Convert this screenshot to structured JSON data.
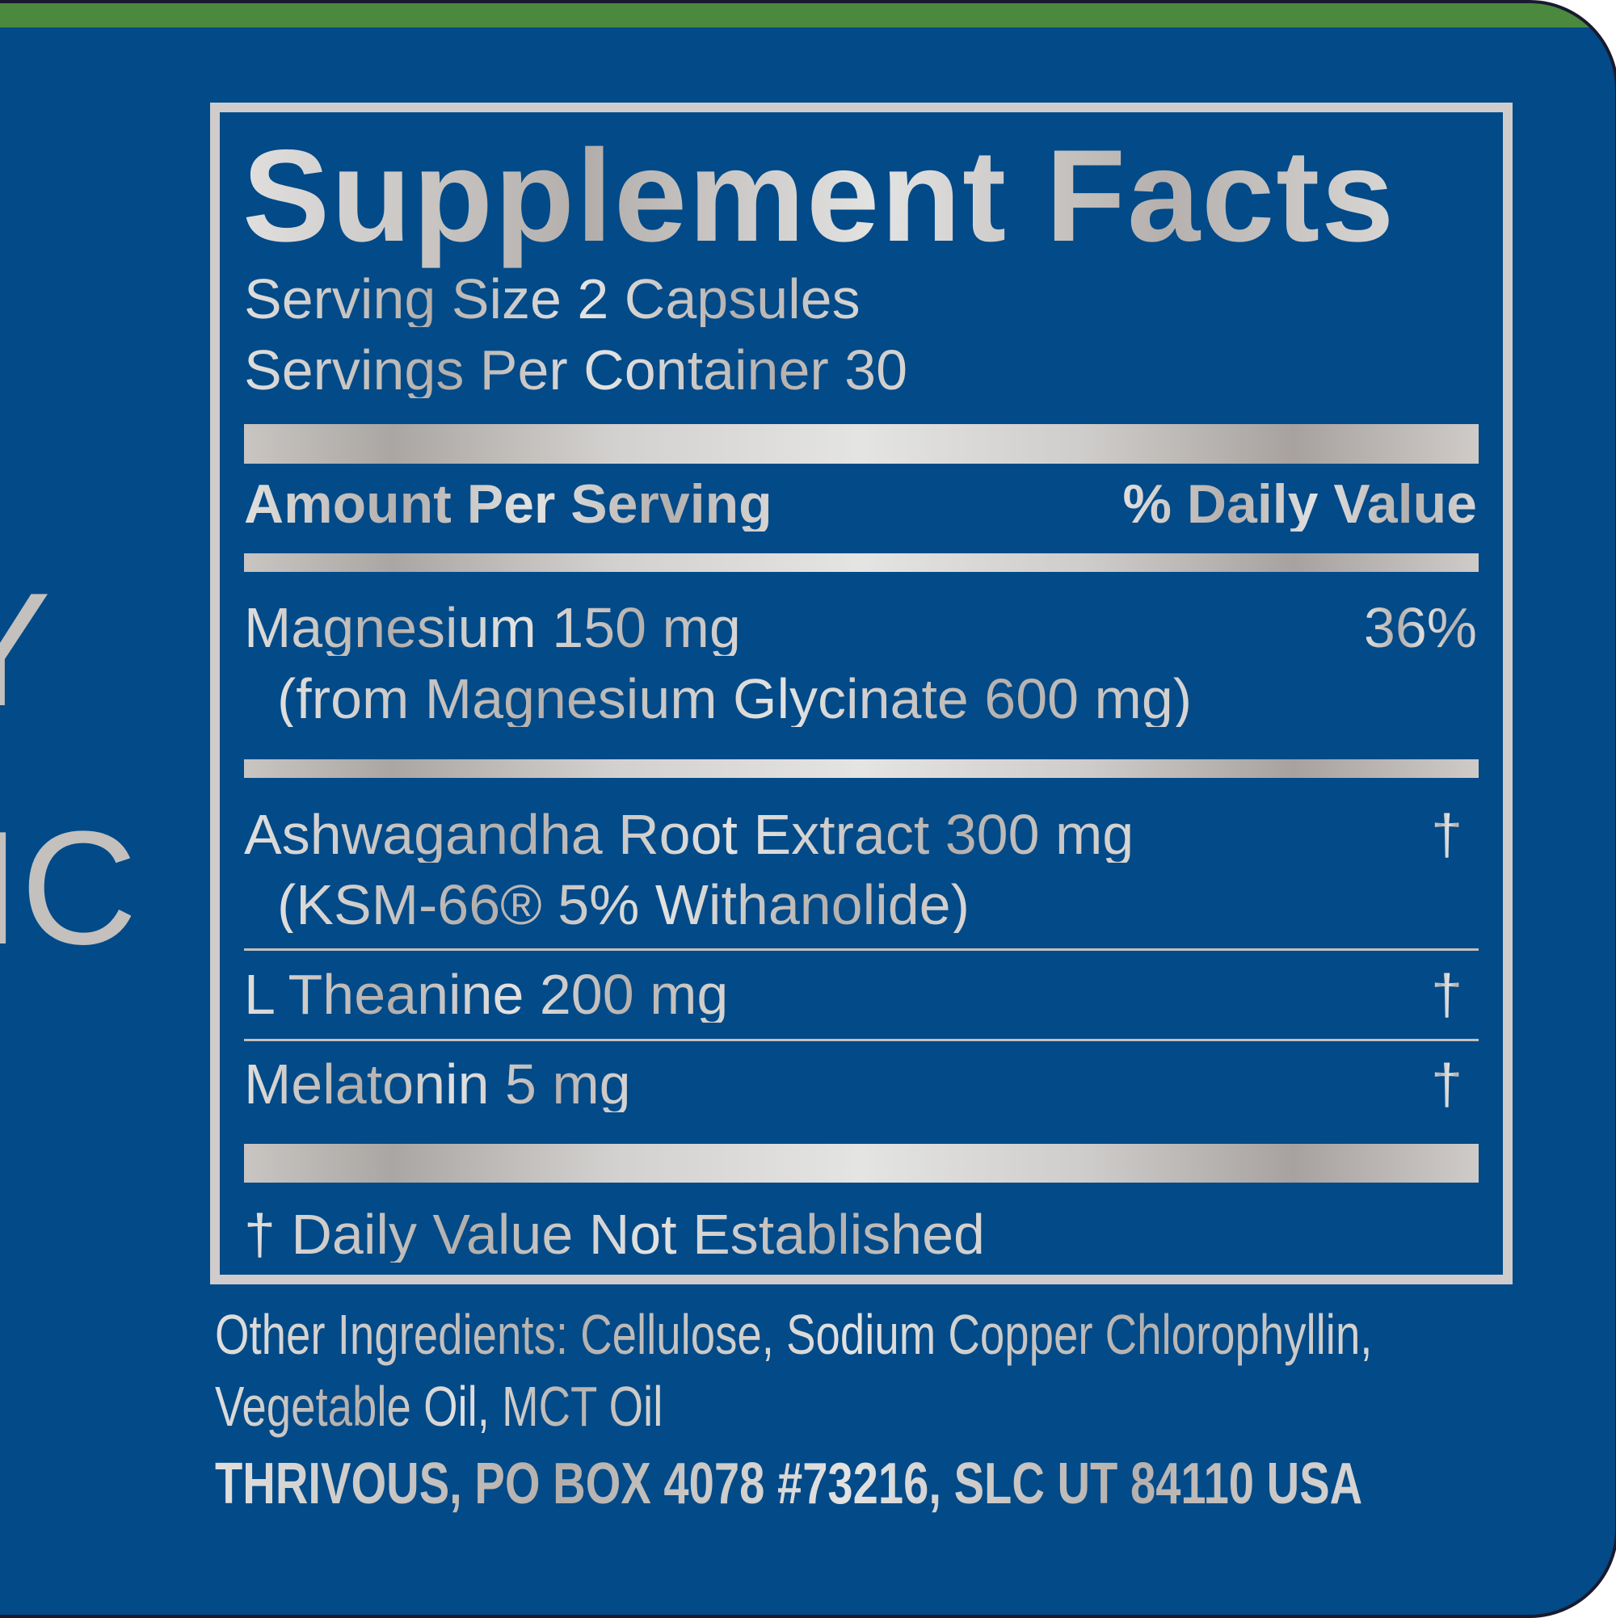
{
  "side_text": {
    "line1": "Y",
    "line2": "IC"
  },
  "facts": {
    "title": "Supplement Facts",
    "serving_size": "Serving Size 2 Capsules",
    "servings_per_container": "Servings Per Container 30",
    "amount_header": "Amount Per Serving",
    "dv_header": "% Daily Value",
    "rows": [
      {
        "name": "Magnesium 150 mg",
        "sub": "(from Magnesium Glycinate 600 mg)",
        "dv": "36%"
      },
      {
        "name": "Ashwagandha Root Extract 300 mg",
        "sub": "(KSM-66® 5% Withanolide)",
        "dv": "†"
      },
      {
        "name": "L Theanine 200 mg",
        "dv": "†"
      },
      {
        "name": "Melatonin 5 mg",
        "dv": "†"
      }
    ],
    "footnote": "† Daily Value Not Established"
  },
  "other_ingredients": {
    "line1": "Other Ingredients: Cellulose, Sodium Copper Chlorophyllin,",
    "line2": "Vegetable Oil, MCT Oil"
  },
  "address": "THRIVOUS, PO BOX 4078 #73216, SLC UT 84110 USA",
  "colors": {
    "background": "#024a88",
    "top_band": "#4b893e",
    "text": "#d2d0ce"
  }
}
